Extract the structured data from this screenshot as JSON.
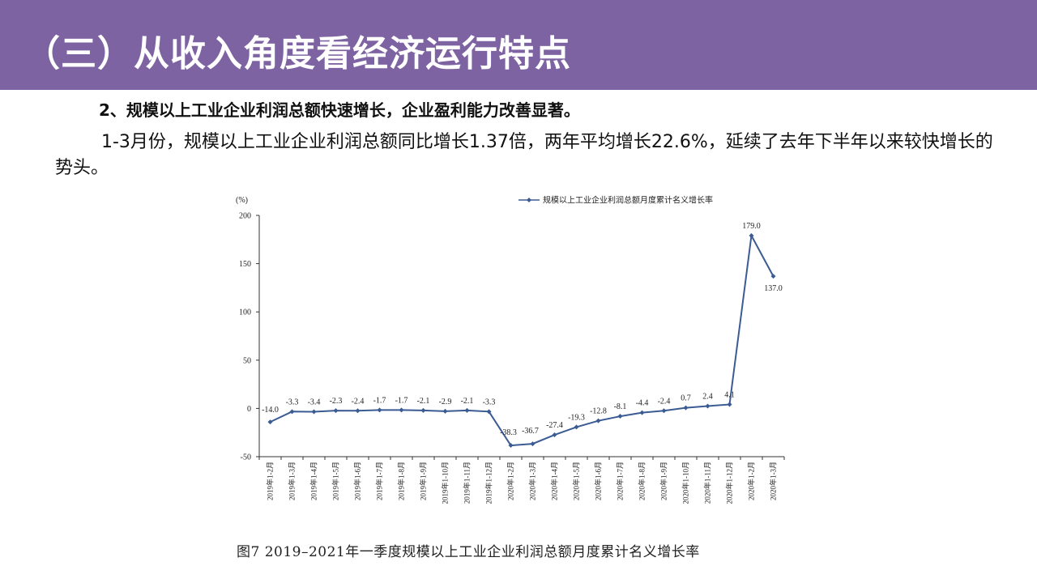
{
  "slide": {
    "title": "（三）从收入角度看经济运行特点",
    "subtitle": "2、规模以上工业企业利润总额快速增长，企业盈利能力改善显著。",
    "paragraph": "1-3月份，规模以上工业企业利润总额同比增长1.37倍，两年平均增长22.6%，延续了去年下半年以来较快增长的势头。",
    "caption": "图7  2019–2021年一季度规模以上工业企业利润总额月度累计名义增长率"
  },
  "colors": {
    "header_bg": "#7e63a2",
    "series_line": "#3b5b93"
  },
  "chart_data": {
    "type": "line",
    "unit_label": "(%)",
    "ylim": [
      -50,
      200
    ],
    "yticks": [
      -50,
      0,
      50,
      100,
      150,
      200
    ],
    "legend_position": "top-right",
    "categories": [
      "2019年1-2月",
      "2019年1-3月",
      "2019年1-4月",
      "2019年1-5月",
      "2019年1-6月",
      "2019年1-7月",
      "2019年1-8月",
      "2019年1-9月",
      "2019年1-10月",
      "2019年1-11月",
      "2019年1-12月",
      "2020年1-2月",
      "2020年1-3月",
      "2020年1-4月",
      "2020年1-5月",
      "2020年1-6月",
      "2020年1-7月",
      "2020年1-8月",
      "2020年1-9月",
      "2020年1-10月",
      "2020年1-11月",
      "2020年1-12月",
      "2020年1-2月",
      "2020年1-3月"
    ],
    "series": [
      {
        "name": "规模以上工业企业利润总额月度累计名义增长率",
        "values": [
          -14.0,
          -3.3,
          -3.4,
          -2.3,
          -2.4,
          -1.7,
          -1.7,
          -2.1,
          -2.9,
          -2.1,
          -3.3,
          -38.3,
          -36.7,
          -27.4,
          -19.3,
          -12.8,
          -8.1,
          -4.4,
          -2.4,
          0.7,
          2.4,
          4.1,
          179.0,
          137.0
        ],
        "labels": [
          "-14.0",
          "-3.3",
          "-3.4",
          "-2.3",
          "-2.4",
          "-1.7",
          "-1.7",
          "-2.1",
          "-2.9",
          "-2.1",
          "-3.3",
          "-38.3",
          "-36.7",
          "-27.4",
          "-19.3",
          "-12.8",
          "-8.1",
          "-4.4",
          "-2.4",
          "0.7",
          "2.4",
          "4.1",
          "179.0",
          "137.0"
        ]
      }
    ]
  }
}
